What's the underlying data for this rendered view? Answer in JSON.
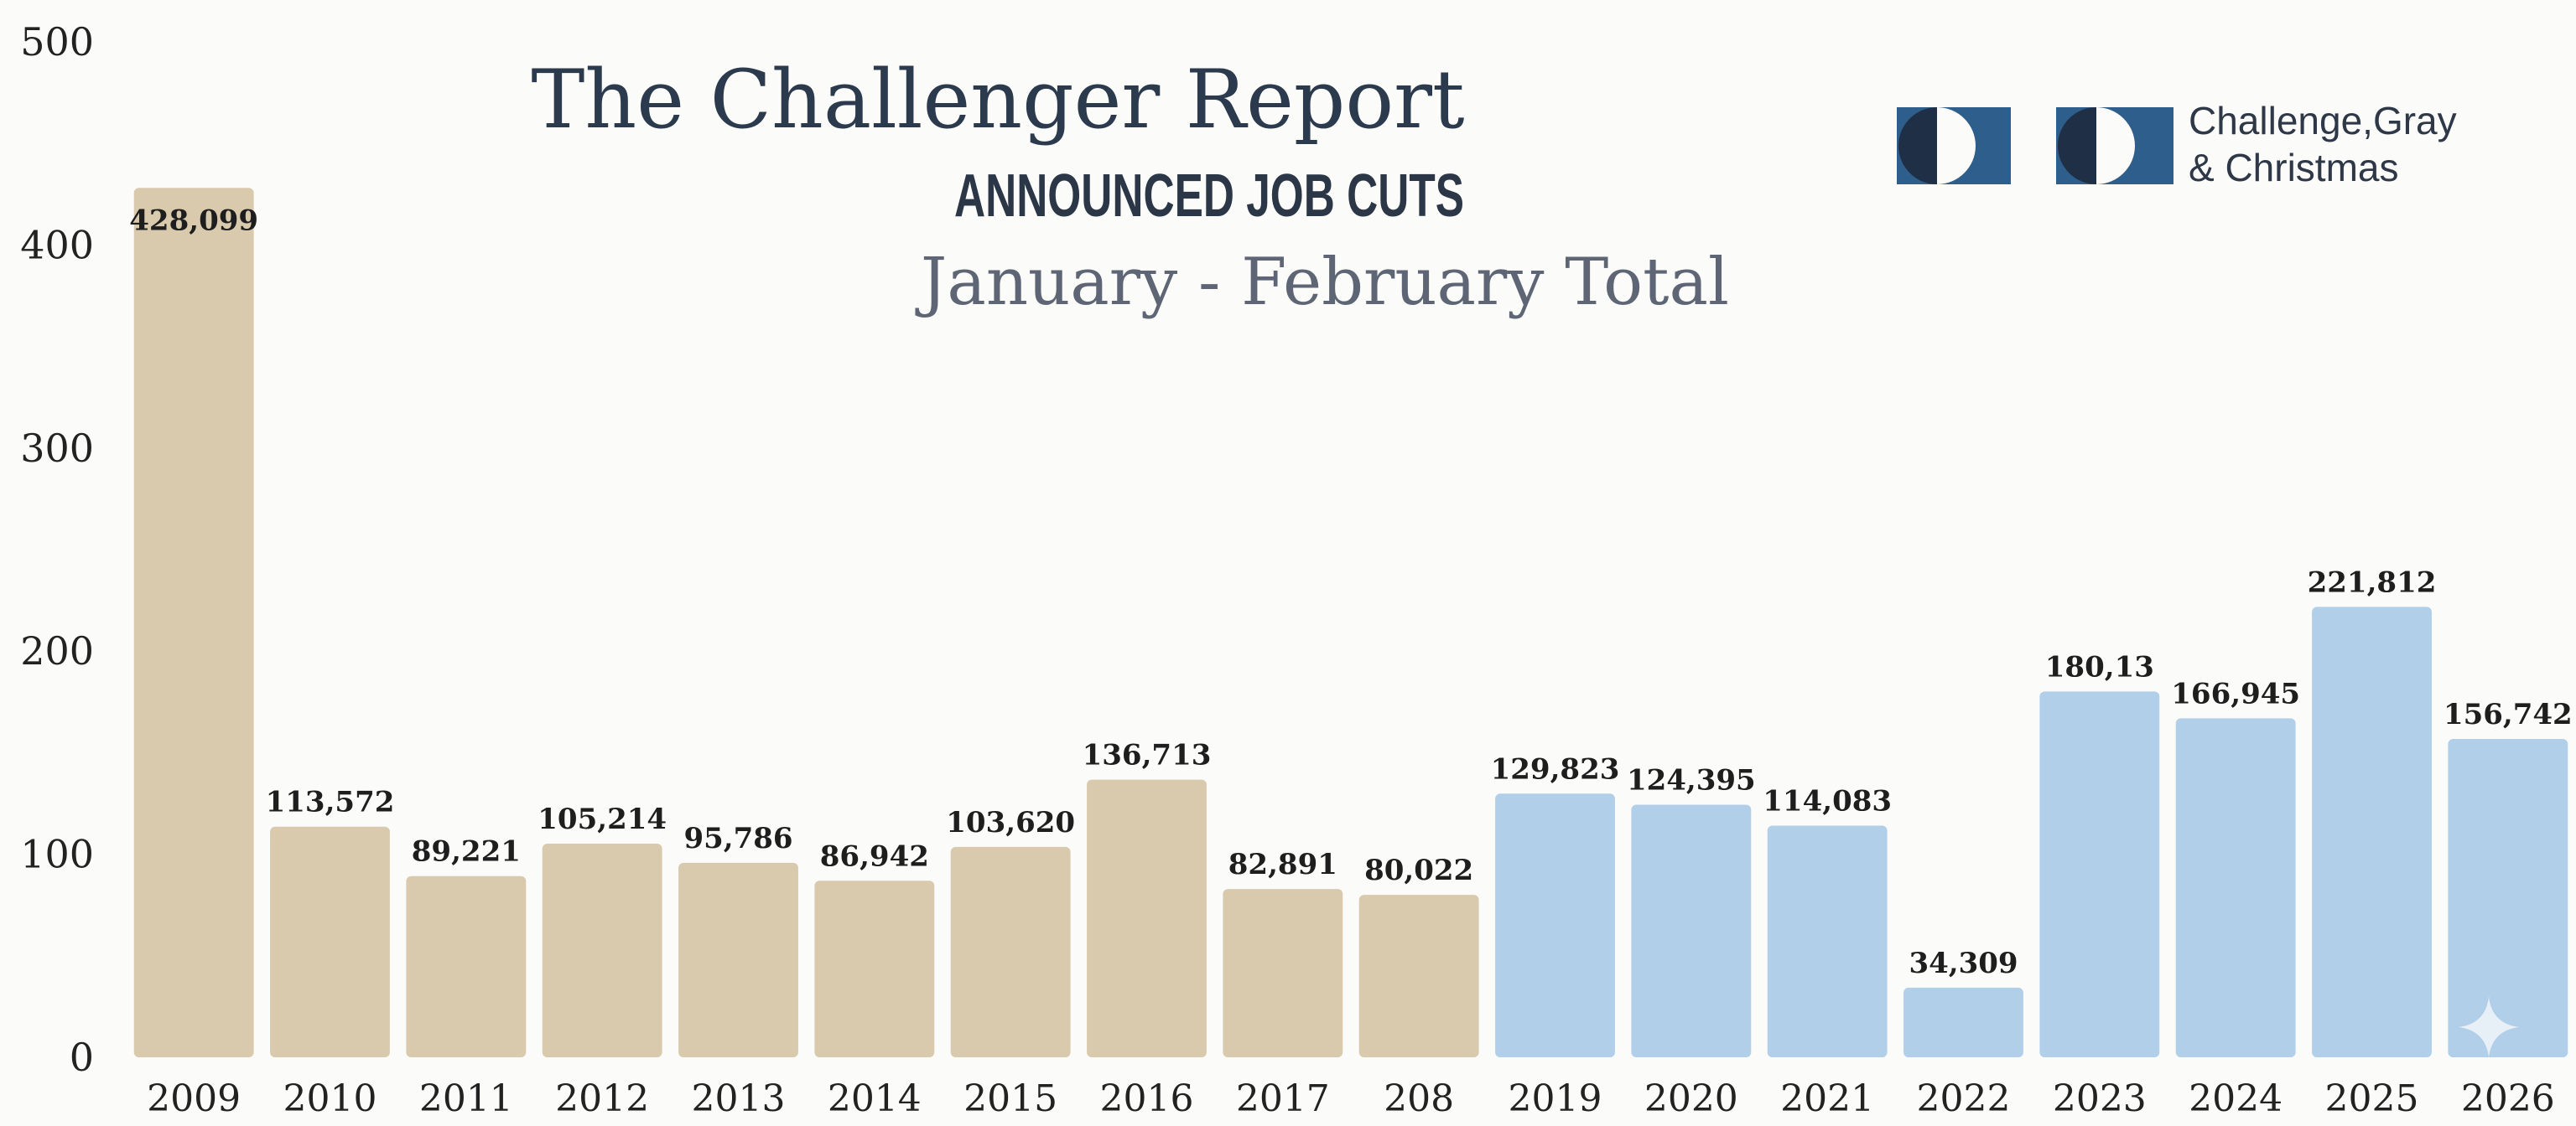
{
  "header": {
    "title": "The Challenger Report",
    "subtitle": "ANNOUNCED JOB CUTS",
    "period": "January - February Total"
  },
  "brand": {
    "line1": "Challenge,Gray",
    "line2": "& Christmas",
    "colors": {
      "dark": "#1f2f45",
      "blue": "#2e5e8c"
    }
  },
  "colors": {
    "bar_tan": "#d9c9ad",
    "bar_blue": "#b1cfe9"
  },
  "chart_data": {
    "type": "bar",
    "title": "The Challenger Report",
    "subtitle": "ANNOUNCED JOB CUTS",
    "xlabel": "",
    "ylabel": "",
    "ylim": [
      0,
      500
    ],
    "yticks": [
      0,
      100,
      200,
      300,
      400,
      500
    ],
    "ytick_labels": [
      "0",
      "100",
      "200",
      "300",
      "400",
      "500"
    ],
    "grid": false,
    "categories": [
      "2009",
      "2010",
      "2011",
      "2012",
      "2013",
      "2014",
      "2015",
      "2016",
      "2017",
      "208",
      "2019",
      "2020",
      "2021",
      "2022",
      "2023",
      "2024",
      "2025",
      "2026"
    ],
    "values": [
      428.099,
      113.572,
      89.221,
      105.214,
      95.786,
      86.942,
      103.62,
      136.713,
      82.891,
      80.0,
      129.823,
      124.395,
      114.083,
      34.309,
      180.13,
      166.945,
      221.812,
      156.742
    ],
    "data_labels": [
      "428,099",
      "113,572",
      "89,221",
      "105,214",
      "95,786",
      "86,942",
      "103,620",
      "136,713",
      "82,891",
      "80,022",
      "129,823",
      "124,395",
      "114,083",
      "34,309",
      "180,13",
      "166,945",
      "221,812",
      "156,742"
    ],
    "bar_color_groups": [
      "tan",
      "tan",
      "tan",
      "tan",
      "tan",
      "tan",
      "tan",
      "tan",
      "tan",
      "tan",
      "blue",
      "blue",
      "blue",
      "blue",
      "blue",
      "blue",
      "blue",
      "blue"
    ]
  }
}
